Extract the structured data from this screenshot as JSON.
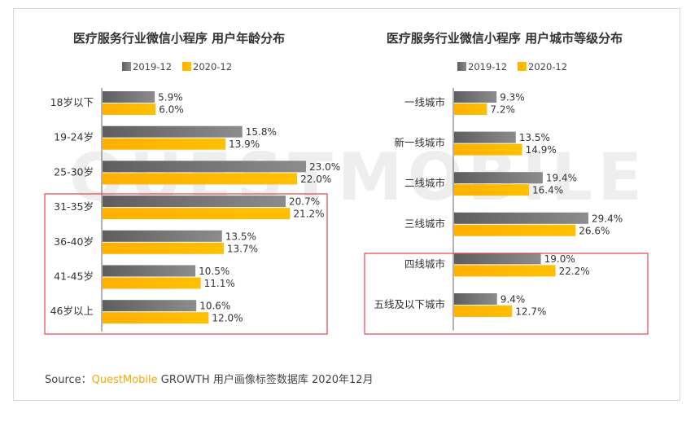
{
  "footer": {
    "prefix": "Source：",
    "brand": "QuestMobile",
    "rest": " GROWTH 用户画像标签数据库 2020年12月"
  },
  "watermark": {
    "text": "QUESTMOBILE"
  },
  "colors": {
    "series_2019": "#8c8c8c",
    "series_2020": "#ffc000",
    "highlight_box": "#e8404a"
  },
  "chart_data": [
    {
      "type": "bar",
      "orientation": "horizontal",
      "title": "医疗服务行业微信小程序 用户年龄分布",
      "categories": [
        "18岁以下",
        "19-24岁",
        "25-30岁",
        "31-35岁",
        "36-40岁",
        "41-45岁",
        "46岁以上"
      ],
      "series": [
        {
          "name": "2019-12",
          "values": [
            5.9,
            15.8,
            23.0,
            20.7,
            13.5,
            10.5,
            10.6
          ]
        },
        {
          "name": "2020-12",
          "values": [
            6.0,
            13.9,
            22.0,
            21.2,
            13.7,
            11.1,
            12.0
          ]
        }
      ],
      "value_suffix": "%",
      "legend": "top-center",
      "grid": false,
      "highlighted_categories": [
        "31-35岁",
        "36-40岁",
        "41-45岁",
        "46岁以上"
      ]
    },
    {
      "type": "bar",
      "orientation": "horizontal",
      "title": "医疗服务行业微信小程序 用户城市等级分布",
      "categories": [
        "一线城市",
        "新一线城市",
        "二线城市",
        "三线城市",
        "四线城市",
        "五线及以下城市"
      ],
      "series": [
        {
          "name": "2019-12",
          "values": [
            9.3,
            13.5,
            19.4,
            29.4,
            19.0,
            9.4
          ]
        },
        {
          "name": "2020-12",
          "values": [
            7.2,
            14.9,
            16.4,
            26.6,
            22.2,
            12.7
          ]
        }
      ],
      "value_suffix": "%",
      "legend": "top-center",
      "grid": false,
      "highlighted_categories": [
        "四线城市",
        "五线及以下城市"
      ]
    }
  ]
}
